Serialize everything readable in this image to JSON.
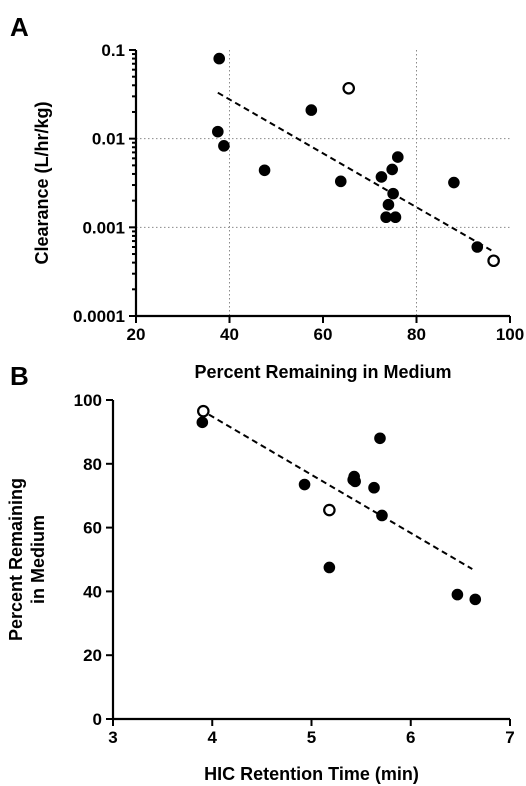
{
  "chart_data": [
    {
      "panel_label": "A",
      "type": "scatter",
      "xlabel": "Percent Remaining in Medium",
      "ylabel": "Clearance (L/hr/kg)",
      "xlim": [
        20,
        100
      ],
      "ylim": [
        0.0001,
        0.1
      ],
      "yscale": "log",
      "xticks": [
        20,
        40,
        60,
        80,
        100
      ],
      "xtick_labels": [
        "20",
        "40",
        "60",
        "80",
        "100"
      ],
      "yticks": [
        0.0001,
        0.001,
        0.01,
        0.1
      ],
      "ytick_labels": [
        "0.0001",
        "0.001",
        "0.01",
        "0.1"
      ],
      "grid": {
        "x": [
          40,
          80
        ],
        "y": [
          0.001,
          0.01
        ],
        "style": "dotted"
      },
      "series": [
        {
          "marker": "filled-circle",
          "points": [
            [
              37.8,
              0.08
            ],
            [
              37.5,
              0.012
            ],
            [
              38.8,
              0.0083
            ],
            [
              47.5,
              0.0044
            ],
            [
              57.5,
              0.021
            ],
            [
              63.8,
              0.0033
            ],
            [
              72.5,
              0.0037
            ],
            [
              73.5,
              0.0013
            ],
            [
              74.0,
              0.0018
            ],
            [
              74.8,
              0.0045
            ],
            [
              75.0,
              0.0024
            ],
            [
              75.5,
              0.0013
            ],
            [
              76.0,
              0.0062
            ],
            [
              88.0,
              0.0032
            ],
            [
              93.0,
              0.0006
            ]
          ]
        },
        {
          "marker": "open-circle",
          "points": [
            [
              65.5,
              0.037
            ],
            [
              96.5,
              0.00042
            ]
          ]
        }
      ],
      "trendline": {
        "style": "dashed",
        "x": [
          37.5,
          96.0
        ],
        "y": [
          0.033,
          0.00055
        ]
      }
    },
    {
      "panel_label": "B",
      "type": "scatter",
      "xlabel": "HIC Retention Time (min)",
      "ylabel": "Percent Remaining in Medium",
      "ylabel_lines": [
        "Percent Remaining",
        "in Medium"
      ],
      "xlim": [
        3,
        7
      ],
      "ylim": [
        0,
        100
      ],
      "xticks": [
        3,
        4,
        5,
        6,
        7
      ],
      "xtick_labels": [
        "3",
        "4",
        "5",
        "6",
        "7"
      ],
      "yticks": [
        0,
        20,
        40,
        60,
        80,
        100
      ],
      "ytick_labels": [
        "0",
        "20",
        "40",
        "60",
        "80",
        "100"
      ],
      "series": [
        {
          "marker": "filled-circle",
          "points": [
            [
              3.9,
              93.0
            ],
            [
              4.93,
              73.5
            ],
            [
              5.18,
              47.5
            ],
            [
              5.42,
              75.0
            ],
            [
              5.43,
              76.0
            ],
            [
              5.44,
              74.5
            ],
            [
              5.63,
              72.5
            ],
            [
              5.69,
              88.0
            ],
            [
              5.71,
              63.8
            ],
            [
              6.47,
              39.0
            ],
            [
              6.65,
              37.5
            ]
          ]
        },
        {
          "marker": "open-circle",
          "points": [
            [
              3.91,
              96.5
            ],
            [
              5.18,
              65.5
            ]
          ]
        }
      ],
      "trendline": {
        "style": "dashed",
        "x": [
          3.88,
          6.62
        ],
        "y": [
          97.0,
          47.0
        ]
      }
    }
  ]
}
